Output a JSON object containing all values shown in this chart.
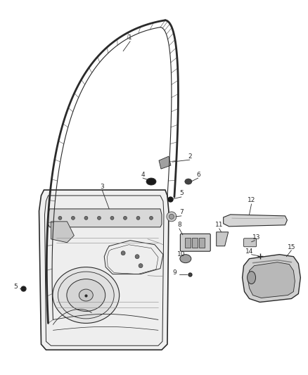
{
  "bg_color": "#ffffff",
  "line_color": "#2a2a2a",
  "gray_light": "#c8c8c8",
  "gray_mid": "#a0a0a0",
  "gray_dark": "#707070",
  "label_fs": 6.5,
  "fig_w": 4.38,
  "fig_h": 5.33
}
